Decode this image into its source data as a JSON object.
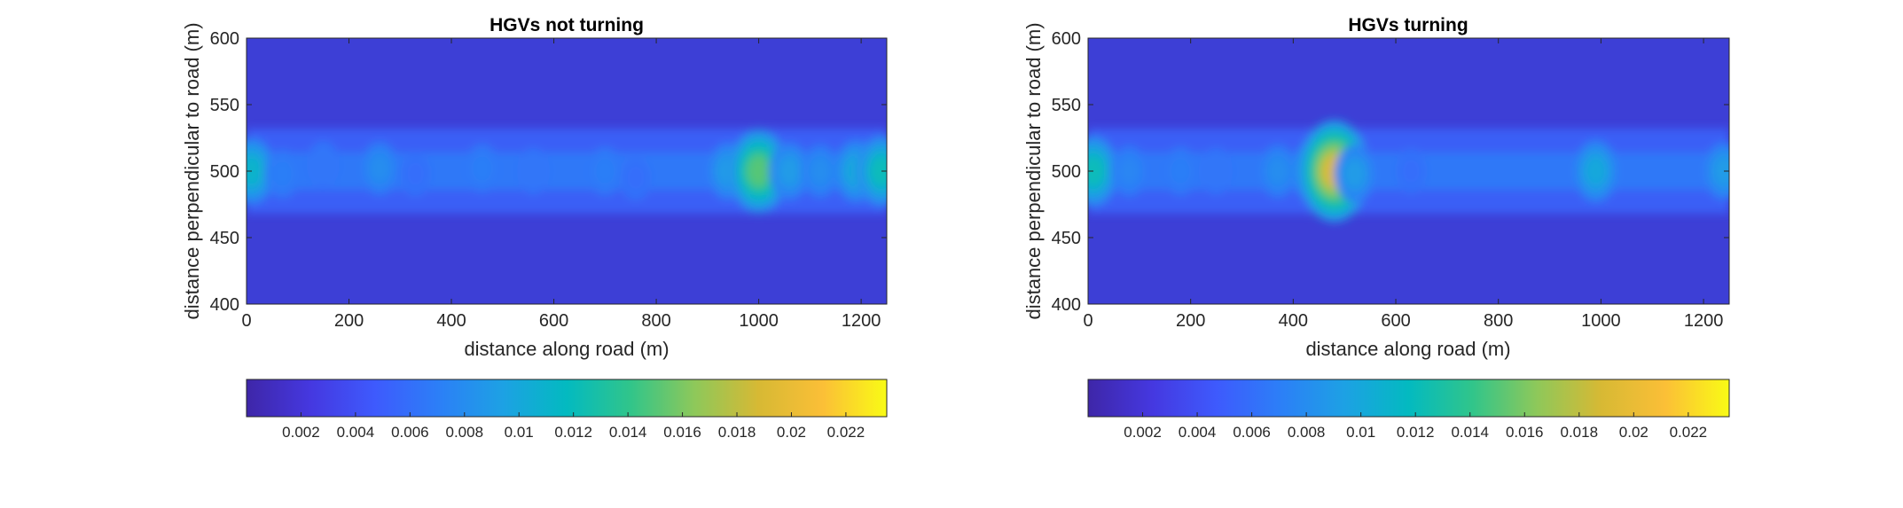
{
  "chart_data": [
    {
      "type": "heatmap",
      "title": "HGVs not turning",
      "xlabel": "distance along road (m)",
      "ylabel": "distance perpendicular to road (m)",
      "xlim": [
        0,
        1250
      ],
      "ylim": [
        400,
        600
      ],
      "xticks": [
        0,
        200,
        400,
        600,
        800,
        1000,
        1200
      ],
      "yticks": [
        400,
        450,
        500,
        550,
        600
      ],
      "colormap": "parula",
      "colorbar": {
        "location": "bottom",
        "clim": [
          0,
          0.0235
        ],
        "ticks": [
          0.002,
          0.004,
          0.006,
          0.008,
          0.01,
          0.012,
          0.014,
          0.016,
          0.018,
          0.02,
          0.022
        ],
        "tick_labels": [
          "0.002",
          "0.004",
          "0.006",
          "0.008",
          "0.01",
          "0.012",
          "0.014",
          "0.016",
          "0.018",
          "0.02",
          "0.022"
        ]
      },
      "background_level": 0.004,
      "band_center_y": 500,
      "hotspots": [
        {
          "x": 10,
          "y": 500,
          "value": 0.011
        },
        {
          "x": 70,
          "y": 498,
          "value": 0.007
        },
        {
          "x": 150,
          "y": 505,
          "value": 0.0065
        },
        {
          "x": 260,
          "y": 502,
          "value": 0.008
        },
        {
          "x": 330,
          "y": 498,
          "value": 0.006
        },
        {
          "x": 460,
          "y": 502,
          "value": 0.007
        },
        {
          "x": 560,
          "y": 500,
          "value": 0.0065
        },
        {
          "x": 700,
          "y": 500,
          "value": 0.007
        },
        {
          "x": 760,
          "y": 495,
          "value": 0.006
        },
        {
          "x": 940,
          "y": 500,
          "value": 0.009
        },
        {
          "x": 1000,
          "y": 500,
          "value": 0.015
        },
        {
          "x": 1060,
          "y": 500,
          "value": 0.009
        },
        {
          "x": 1120,
          "y": 500,
          "value": 0.008
        },
        {
          "x": 1190,
          "y": 500,
          "value": 0.01
        },
        {
          "x": 1240,
          "y": 500,
          "value": 0.012
        }
      ]
    },
    {
      "type": "heatmap",
      "title": "HGVs turning",
      "xlabel": "distance along road (m)",
      "ylabel": "distance perpendicular to road (m)",
      "xlim": [
        0,
        1250
      ],
      "ylim": [
        400,
        600
      ],
      "xticks": [
        0,
        200,
        400,
        600,
        800,
        1000,
        1200
      ],
      "yticks": [
        400,
        450,
        500,
        550,
        600
      ],
      "colormap": "parula",
      "colorbar": {
        "location": "bottom",
        "clim": [
          0,
          0.0235
        ],
        "ticks": [
          0.002,
          0.004,
          0.006,
          0.008,
          0.01,
          0.012,
          0.014,
          0.016,
          0.018,
          0.02,
          0.022
        ],
        "tick_labels": [
          "0.002",
          "0.004",
          "0.006",
          "0.008",
          "0.01",
          "0.012",
          "0.014",
          "0.016",
          "0.018",
          "0.02",
          "0.022"
        ]
      },
      "background_level": 0.004,
      "band_center_y": 500,
      "hotspots": [
        {
          "x": 10,
          "y": 500,
          "value": 0.012
        },
        {
          "x": 80,
          "y": 500,
          "value": 0.0075
        },
        {
          "x": 180,
          "y": 500,
          "value": 0.007
        },
        {
          "x": 250,
          "y": 500,
          "value": 0.0065
        },
        {
          "x": 370,
          "y": 500,
          "value": 0.008
        },
        {
          "x": 440,
          "y": 500,
          "value": 0.01
        },
        {
          "x": 480,
          "y": 500,
          "value": 0.019
        },
        {
          "x": 520,
          "y": 498,
          "value": 0.009
        },
        {
          "x": 630,
          "y": 500,
          "value": 0.006
        },
        {
          "x": 990,
          "y": 500,
          "value": 0.01
        },
        {
          "x": 1240,
          "y": 500,
          "value": 0.009
        }
      ]
    }
  ]
}
